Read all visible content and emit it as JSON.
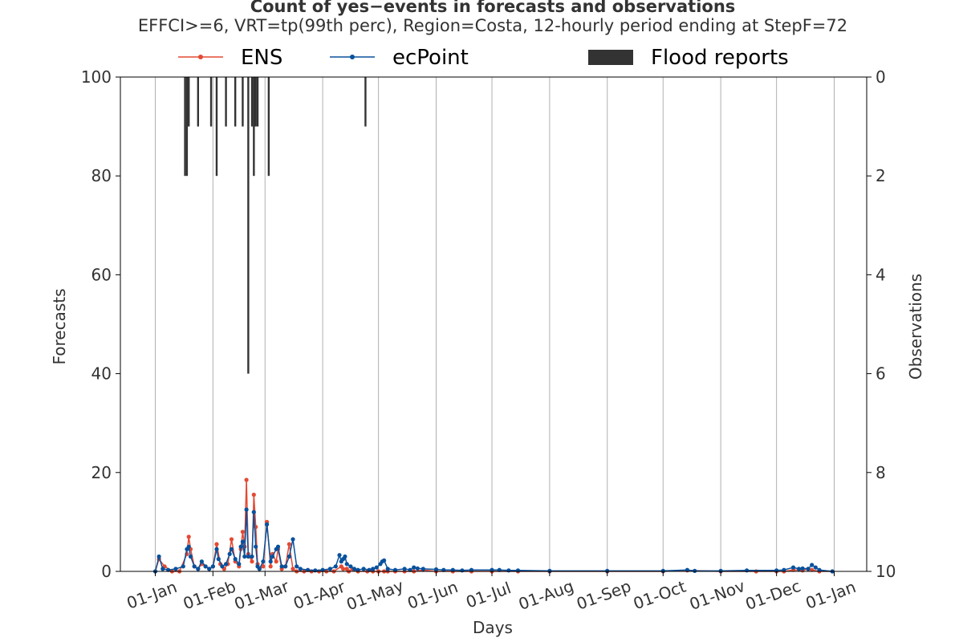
{
  "chart_data": {
    "type": "line",
    "title": "Count of yes−events in forecasts and observations",
    "subtitle": "EFFCI>=6, VRT=tp(99th perc), Region=Costa, 12-hourly period ending at StepF=72",
    "xlabel": "Days",
    "ylabel_left": "Forecasts",
    "ylabel_right": "Observations",
    "ylim_left": [
      0,
      100
    ],
    "ylim_right": [
      10,
      0
    ],
    "yticks_left": [
      "0",
      "20",
      "40",
      "60",
      "80",
      "100"
    ],
    "yticks_right": [
      "0",
      "2",
      "4",
      "6",
      "8",
      "10"
    ],
    "xtick_labels": [
      "01-Jan",
      "01-Feb",
      "01-Mar",
      "01-Apr",
      "01-May",
      "01-Jun",
      "01-Jul",
      "01-Aug",
      "01-Sep",
      "01-Oct",
      "01-Nov",
      "01-Dec",
      "01-Jan"
    ],
    "grid": "vertical",
    "legend_position": "top",
    "legend": [
      "ENS",
      "ecPoint",
      "Flood reports"
    ],
    "colors": {
      "ENS": "#e34a33",
      "ecPoint": "#08519c",
      "Flood reports": "#333333"
    },
    "series": [
      {
        "name": "ENS",
        "x": [
          "01-Jan",
          "03-Jan",
          "06-Jan",
          "10-Jan",
          "14-Jan",
          "18-Jan",
          "19-Jan",
          "20-Jan",
          "22-Jan",
          "24-Jan",
          "26-Jan",
          "28-Jan",
          "30-Jan",
          "01-Feb",
          "03-Feb",
          "05-Feb",
          "07-Feb",
          "09-Feb",
          "11-Feb",
          "13-Feb",
          "15-Feb",
          "16-Feb",
          "17-Feb",
          "18-Feb",
          "19-Feb",
          "20-Feb",
          "22-Feb",
          "23-Feb",
          "24-Feb",
          "25-Feb",
          "26-Feb",
          "28-Feb",
          "02-Mar",
          "04-Mar",
          "05-Mar",
          "07-Mar",
          "08-Mar",
          "10-Mar",
          "12-Mar",
          "14-Mar",
          "16-Mar",
          "18-Mar",
          "22-Mar",
          "26-Mar",
          "30-Mar",
          "03-Apr",
          "07-Apr",
          "11-Apr",
          "12-Apr",
          "14-Apr",
          "15-Apr",
          "17-Apr",
          "20-Apr",
          "25-Apr",
          "28-Apr",
          "01-May",
          "04-May",
          "06-May",
          "10-May",
          "15-May",
          "20-May",
          "25-May",
          "01-Jun",
          "10-Jun",
          "20-Jun",
          "01-Jul",
          "15-Jul",
          "01-Aug",
          "01-Sep",
          "01-Oct",
          "14-Oct",
          "01-Nov",
          "20-Nov",
          "01-Dec",
          "05-Dec",
          "10-Dec",
          "15-Dec",
          "18-Dec",
          "20-Dec",
          "24-Dec",
          "31-Dec"
        ],
        "values": [
          0,
          2.5,
          1.0,
          0,
          0,
          3.5,
          7.0,
          4.5,
          1.0,
          0.5,
          1.5,
          1.0,
          0.5,
          1.0,
          5.5,
          1.5,
          0.5,
          1.5,
          6.5,
          2.0,
          1.0,
          4.5,
          8.0,
          5.0,
          18.5,
          3.5,
          2.0,
          15.5,
          9.0,
          1.5,
          0.5,
          1.0,
          10.0,
          1.0,
          3.5,
          2.0,
          4.5,
          0.5,
          1.0,
          5.5,
          0.5,
          0,
          0,
          0,
          0,
          0,
          0,
          1.0,
          0.5,
          0.5,
          0,
          0.5,
          0,
          0,
          0,
          0,
          0,
          0,
          0,
          0,
          0,
          0.3,
          0,
          0,
          0,
          0,
          0,
          0,
          0,
          0,
          0.2,
          0,
          0,
          0,
          0,
          0.3,
          0.2,
          0.5,
          0.3,
          0,
          0
        ]
      },
      {
        "name": "ecPoint",
        "x": [
          "01-Jan",
          "03-Jan",
          "05-Jan",
          "08-Jan",
          "12-Jan",
          "16-Jan",
          "18-Jan",
          "19-Jan",
          "20-Jan",
          "22-Jan",
          "24-Jan",
          "26-Jan",
          "28-Jan",
          "30-Jan",
          "01-Feb",
          "03-Feb",
          "04-Feb",
          "06-Feb",
          "08-Feb",
          "10-Feb",
          "11-Feb",
          "13-Feb",
          "15-Feb",
          "16-Feb",
          "17-Feb",
          "18-Feb",
          "19-Feb",
          "20-Feb",
          "22-Feb",
          "23-Feb",
          "24-Feb",
          "25-Feb",
          "26-Feb",
          "28-Feb",
          "02-Mar",
          "04-Mar",
          "05-Mar",
          "07-Mar",
          "08-Mar",
          "10-Mar",
          "12-Mar",
          "14-Mar",
          "16-Mar",
          "18-Mar",
          "20-Mar",
          "24-Mar",
          "28-Mar",
          "01-Apr",
          "05-Apr",
          "08-Apr",
          "10-Apr",
          "11-Apr",
          "12-Apr",
          "13-Apr",
          "14-Apr",
          "16-Apr",
          "18-Apr",
          "20-Apr",
          "23-Apr",
          "26-Apr",
          "28-Apr",
          "30-Apr",
          "02-May",
          "03-May",
          "04-May",
          "06-May",
          "10-May",
          "15-May",
          "18-May",
          "20-May",
          "22-May",
          "25-May",
          "01-Jun",
          "05-Jun",
          "10-Jun",
          "15-Jun",
          "20-Jun",
          "01-Jul",
          "05-Jul",
          "10-Jul",
          "15-Jul",
          "01-Aug",
          "01-Sep",
          "01-Oct",
          "14-Oct",
          "18-Oct",
          "01-Nov",
          "15-Nov",
          "01-Dec",
          "05-Dec",
          "10-Dec",
          "13-Dec",
          "15-Dec",
          "18-Dec",
          "20-Dec",
          "22-Dec",
          "24-Dec",
          "31-Dec"
        ],
        "values": [
          0,
          3.0,
          0.5,
          0.3,
          0.5,
          1.0,
          4.5,
          5.0,
          3.0,
          1.0,
          0.5,
          2.0,
          1.0,
          0.5,
          1.0,
          4.5,
          2.5,
          1.0,
          1.5,
          3.5,
          4.5,
          2.5,
          1.5,
          5.0,
          6.0,
          3.0,
          12.5,
          3.0,
          3.0,
          12.0,
          5.0,
          1.0,
          0.5,
          2.0,
          9.5,
          2.0,
          3.0,
          4.5,
          5.0,
          1.0,
          1.0,
          3.0,
          6.5,
          1.0,
          0.5,
          0.3,
          0.2,
          0.3,
          0.5,
          1.0,
          3.3,
          2.0,
          2.5,
          3.0,
          1.5,
          1.0,
          0.5,
          0.3,
          0.5,
          0.3,
          0.5,
          0.8,
          1.5,
          2.0,
          2.2,
          0.5,
          0.3,
          0.5,
          0.3,
          0.8,
          0.6,
          0.5,
          0.4,
          0.3,
          0.3,
          0.2,
          0.3,
          0.3,
          0.3,
          0.2,
          0.2,
          0.1,
          0.1,
          0.1,
          0.3,
          0.1,
          0.1,
          0.2,
          0.2,
          0.3,
          0.8,
          0.5,
          0.6,
          0.5,
          1.3,
          0.8,
          0.3,
          0
        ]
      },
      {
        "name": "Flood reports",
        "type": "bar",
        "x": [
          "17-Jan",
          "18-Jan",
          "19-Jan",
          "24-Jan",
          "31-Jan",
          "03-Feb",
          "08-Feb",
          "13-Feb",
          "17-Feb",
          "20-Feb",
          "22-Feb",
          "23-Feb",
          "24-Feb",
          "25-Feb",
          "03-Mar",
          "24-Apr"
        ],
        "values": [
          2,
          2,
          1,
          1,
          1,
          2,
          1,
          1,
          1,
          6,
          1,
          2,
          1,
          1,
          2,
          1
        ]
      }
    ]
  }
}
